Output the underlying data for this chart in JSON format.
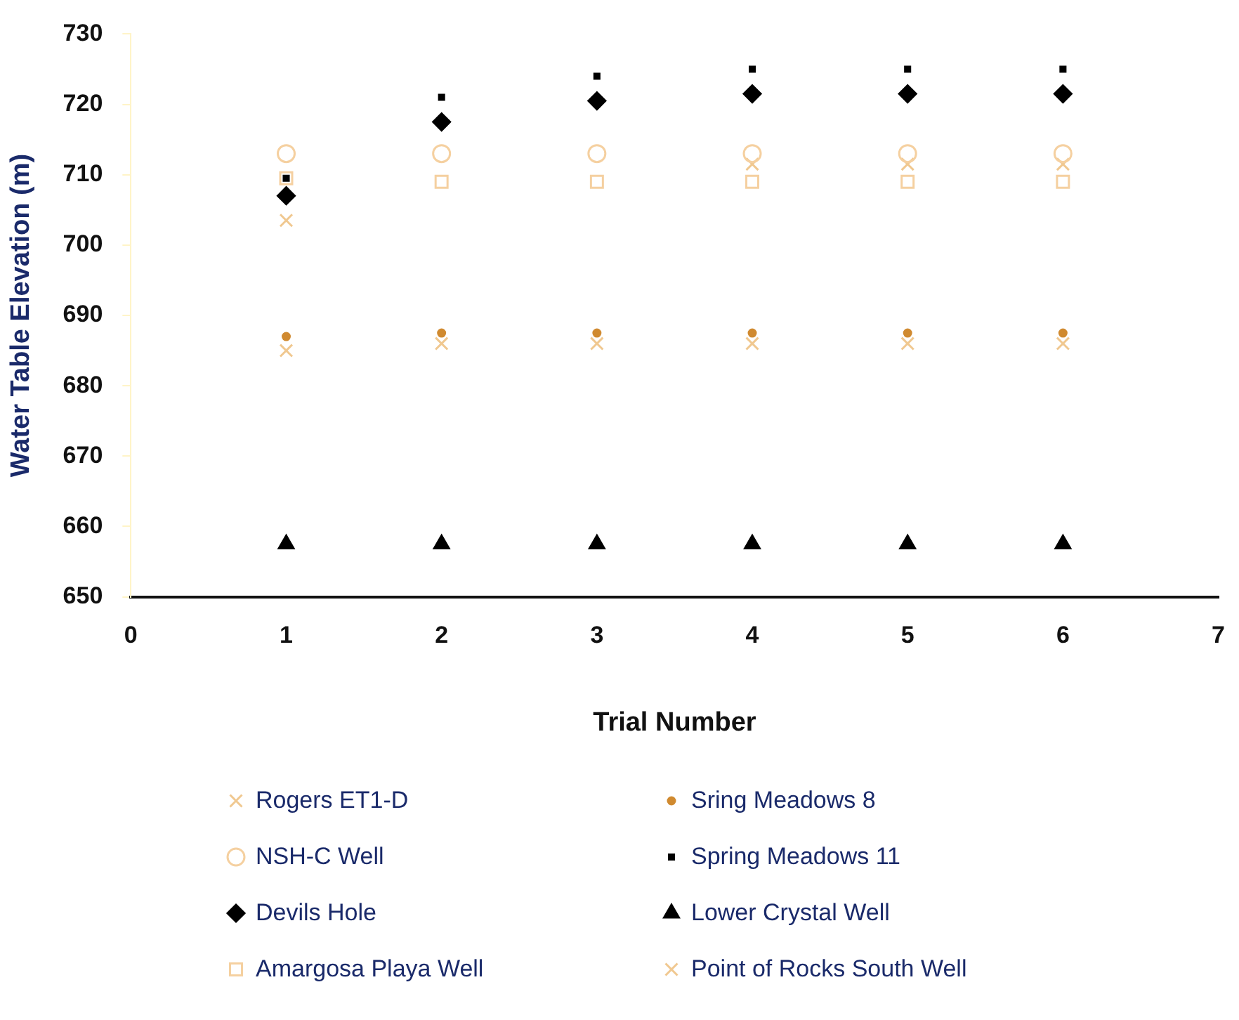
{
  "chart_data": {
    "type": "scatter",
    "xlabel": "Trial Number",
    "ylabel": "Water Table Elevation (m)",
    "x": [
      1,
      2,
      3,
      4,
      5,
      6
    ],
    "xlim": [
      0,
      7
    ],
    "xticks": [
      0,
      1,
      2,
      3,
      4,
      5,
      6,
      7
    ],
    "ylim": [
      650,
      730
    ],
    "yticks": [
      650,
      660,
      670,
      680,
      690,
      700,
      710,
      720,
      730
    ],
    "grid": false,
    "legend": "bottom",
    "series": [
      {
        "name": "Rogers ET1-D",
        "color": "#f0c890",
        "marker": "cross",
        "values": [
          685,
          686,
          686,
          686,
          686,
          686
        ]
      },
      {
        "name": "Sring Meadows 8",
        "color": "#d08a30",
        "marker": "circle",
        "values": [
          687,
          687.5,
          687.5,
          687.5,
          687.5,
          687.5
        ]
      },
      {
        "name": "NSH-C Well",
        "color": "#f5d0a0",
        "marker": "circle",
        "values": [
          713,
          713,
          713,
          713,
          713,
          713
        ]
      },
      {
        "name": "Spring Meadows 11",
        "color": "#000000",
        "marker": "square",
        "values": [
          709.5,
          721,
          724,
          725,
          725,
          725
        ]
      },
      {
        "name": "Devils Hole",
        "color": "#000000",
        "marker": "diamond",
        "values": [
          707,
          717.5,
          720.5,
          721.5,
          721.5,
          721.5
        ]
      },
      {
        "name": "Lower Crystal Well",
        "color": "#000000",
        "marker": "triangle",
        "values": [
          657.5,
          657.5,
          657.5,
          657.5,
          657.5,
          657.5
        ]
      },
      {
        "name": "Amargosa Playa Well",
        "color": "#f5d0a0",
        "marker": "square",
        "values": [
          709.5,
          709,
          709,
          709,
          709,
          709
        ]
      },
      {
        "name": "Point of Rocks South Well",
        "color": "#f0c890",
        "marker": "cross",
        "values": [
          703.5,
          null,
          null,
          711.5,
          711.5,
          711.5
        ]
      }
    ]
  }
}
